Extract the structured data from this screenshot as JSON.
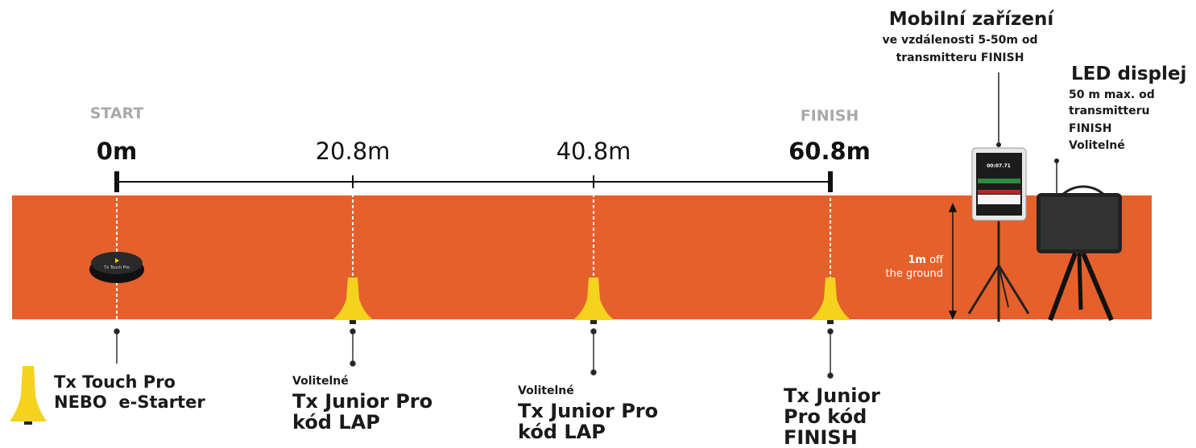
{
  "track": {
    "start_label": "START",
    "finish_label": "FINISH",
    "distances": [
      "0m",
      "20.8m",
      "40.8m",
      "60.8m"
    ],
    "height_note": {
      "value": "1m",
      "rest": "off",
      "line2": "the ground"
    }
  },
  "mobile": {
    "title": "Mobilní zařízení",
    "lines": [
      "ve vzdálenosti 5-50m od",
      "transmitteru FINISH"
    ],
    "screen_time": "00:07.71"
  },
  "led": {
    "title": "LED displej",
    "lines": [
      "50 m max. od",
      "transmitteru",
      "FINISH",
      "Volitelné"
    ]
  },
  "devices": [
    {
      "puck_text": "Tx Touch Pro",
      "lines": [
        "Tx Touch Pro",
        "NEBO  e-Starter"
      ]
    },
    {
      "note": "Volitelné",
      "lines": [
        "Tx Junior Pro",
        "kód LAP"
      ]
    },
    {
      "note": "Volitelné",
      "lines": [
        "Tx Junior Pro",
        "kód LAP"
      ]
    },
    {
      "lines": [
        "Tx Junior",
        "Pro kód",
        "FINISH"
      ]
    }
  ]
}
